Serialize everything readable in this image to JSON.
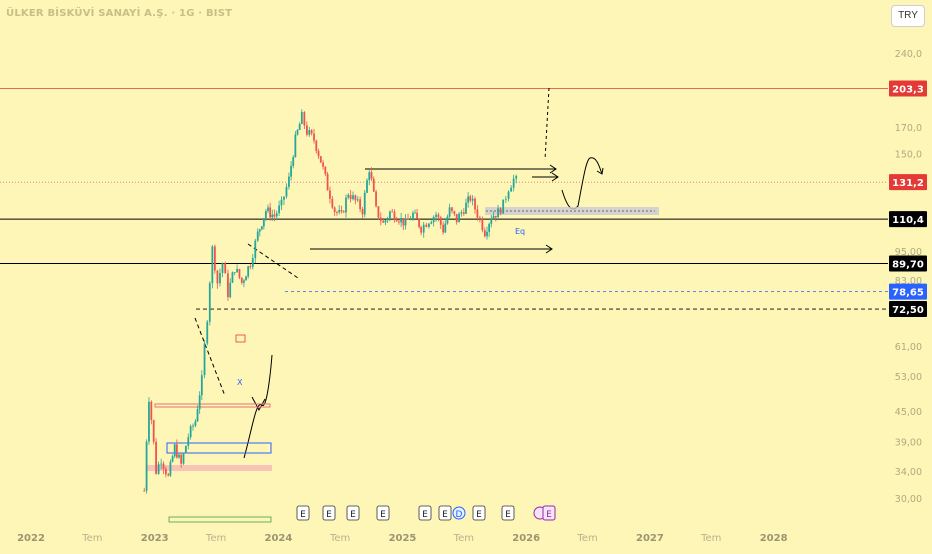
{
  "title": "ÜLKER BİSKÜVİ SANAYİ A.Ş. · 1G · BIST",
  "currency": "TRY",
  "chart_data": {
    "type": "candlestick",
    "scale": "log",
    "x_labels": [
      "2022",
      "Tem",
      "2023",
      "Tem",
      "2024",
      "Tem",
      "2025",
      "Tem",
      "2026",
      "Tem",
      "2027",
      "Tem",
      "2028"
    ],
    "y_ticks": [
      "240,0",
      "170,0",
      "150,0",
      "95,00",
      "83,00",
      "61,00",
      "53,00",
      "45,00",
      "39,00",
      "34,00",
      "30,00"
    ],
    "y_tick_values": [
      240,
      170,
      150,
      95,
      83,
      61,
      53,
      45,
      39,
      34,
      30
    ],
    "price_markers": [
      {
        "label": "203,3",
        "value": 203.3,
        "color": "#e53935"
      },
      {
        "label": "131,2",
        "value": 131.2,
        "color": "#e53935"
      },
      {
        "label": "110,4",
        "value": 110.4,
        "color": "#000000"
      },
      {
        "label": "89,70",
        "value": 89.7,
        "color": "#000000"
      },
      {
        "label": "78,65",
        "value": 78.65,
        "color": "#2962ff"
      },
      {
        "label": "72,50",
        "value": 72.5,
        "color": "#000000"
      }
    ],
    "price_path": [
      [
        "2022-12-01",
        31
      ],
      [
        "2022-12-15",
        48
      ],
      [
        "2023-01-05",
        34
      ],
      [
        "2023-01-20",
        36
      ],
      [
        "2023-02-10",
        33
      ],
      [
        "2023-03-01",
        38
      ],
      [
        "2023-03-20",
        35
      ],
      [
        "2023-04-10",
        40
      ],
      [
        "2023-05-01",
        43
      ],
      [
        "2023-05-20",
        52
      ],
      [
        "2023-06-05",
        70
      ],
      [
        "2023-06-20",
        96
      ],
      [
        "2023-07-05",
        82
      ],
      [
        "2023-07-20",
        90
      ],
      [
        "2023-08-05",
        78
      ],
      [
        "2023-08-25",
        88
      ],
      [
        "2023-09-15",
        82
      ],
      [
        "2023-10-10",
        90
      ],
      [
        "2023-11-01",
        103
      ],
      [
        "2023-11-25",
        115
      ],
      [
        "2023-12-20",
        112
      ],
      [
        "2024-01-10",
        118
      ],
      [
        "2024-02-01",
        133
      ],
      [
        "2024-02-20",
        160
      ],
      [
        "2024-03-10",
        178
      ],
      [
        "2024-03-25",
        166
      ],
      [
        "2024-04-15",
        160
      ],
      [
        "2024-05-05",
        145
      ],
      [
        "2024-05-25",
        128
      ],
      [
        "2024-06-15",
        115
      ],
      [
        "2024-07-05",
        112
      ],
      [
        "2024-07-25",
        125
      ],
      [
        "2024-08-15",
        120
      ],
      [
        "2024-09-05",
        115
      ],
      [
        "2024-09-25",
        140
      ],
      [
        "2024-10-15",
        115
      ],
      [
        "2024-11-05",
        108
      ],
      [
        "2024-11-25",
        114
      ],
      [
        "2024-12-15",
        112
      ],
      [
        "2025-01-10",
        108
      ],
      [
        "2025-02-01",
        113
      ],
      [
        "2025-02-25",
        106
      ],
      [
        "2025-03-20",
        110
      ],
      [
        "2025-04-10",
        113
      ],
      [
        "2025-05-01",
        105
      ],
      [
        "2025-05-20",
        115
      ],
      [
        "2025-06-10",
        110
      ],
      [
        "2025-07-01",
        116
      ],
      [
        "2025-07-20",
        122
      ],
      [
        "2025-08-10",
        113
      ],
      [
        "2025-09-01",
        104
      ],
      [
        "2025-09-20",
        112
      ],
      [
        "2025-10-10",
        114
      ],
      [
        "2025-10-25",
        118
      ],
      [
        "2025-11-10",
        128
      ],
      [
        "2025-11-25",
        133
      ],
      [
        "2025-12-10",
        131
      ]
    ],
    "annotations": {
      "labels": [
        "Eq",
        "X"
      ],
      "event_markers": [
        "E",
        "E",
        "E",
        "E",
        "E",
        "E",
        "D",
        "E",
        "E",
        "E"
      ]
    },
    "grid": false,
    "legend": "none"
  }
}
